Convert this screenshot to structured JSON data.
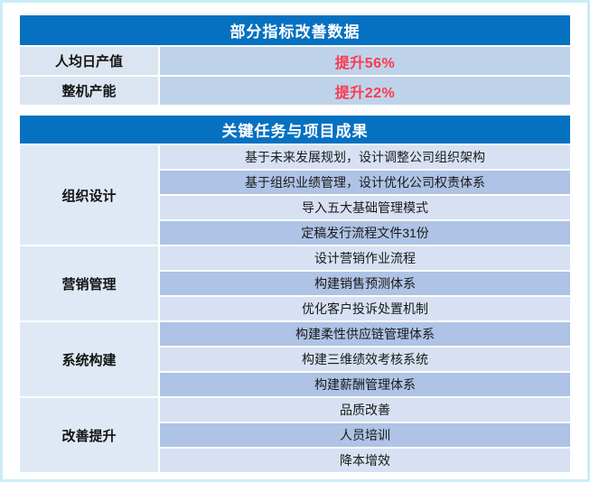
{
  "colors": {
    "header_bg": "#0671C1",
    "highlight_red": "#FB3A50",
    "label_bg": "#DBE5F1",
    "value_bg": "#BED3EA",
    "row_light": "#D7E1F3",
    "row_dark": "#AEC3E5",
    "category_bg": "#DFE9F6",
    "page_border": "#C9EEF5"
  },
  "section1": {
    "title": "部分指标改善数据",
    "rows": [
      {
        "label": "人均日产值",
        "value": "提升56%"
      },
      {
        "label": "整机产能",
        "value": "提升22%"
      }
    ]
  },
  "section2": {
    "title": "关键任务与项目成果",
    "groups": [
      {
        "category": "组织设计",
        "items": [
          "基于未来发展规划，设计调整公司组织架构",
          "基于组织业绩管理，设计优化公司权责体系",
          "导入五大基础管理模式",
          "定稿发行流程文件31份"
        ]
      },
      {
        "category": "营销管理",
        "items": [
          "设计营销作业流程",
          "构建销售预测体系",
          "优化客户投诉处置机制"
        ]
      },
      {
        "category": "系统构建",
        "items": [
          "构建柔性供应链管理体系",
          "构建三维绩效考核系统",
          "构建薪酬管理体系"
        ]
      },
      {
        "category": "改善提升",
        "items": [
          "品质改善",
          "人员培训",
          "降本增效"
        ]
      }
    ]
  }
}
